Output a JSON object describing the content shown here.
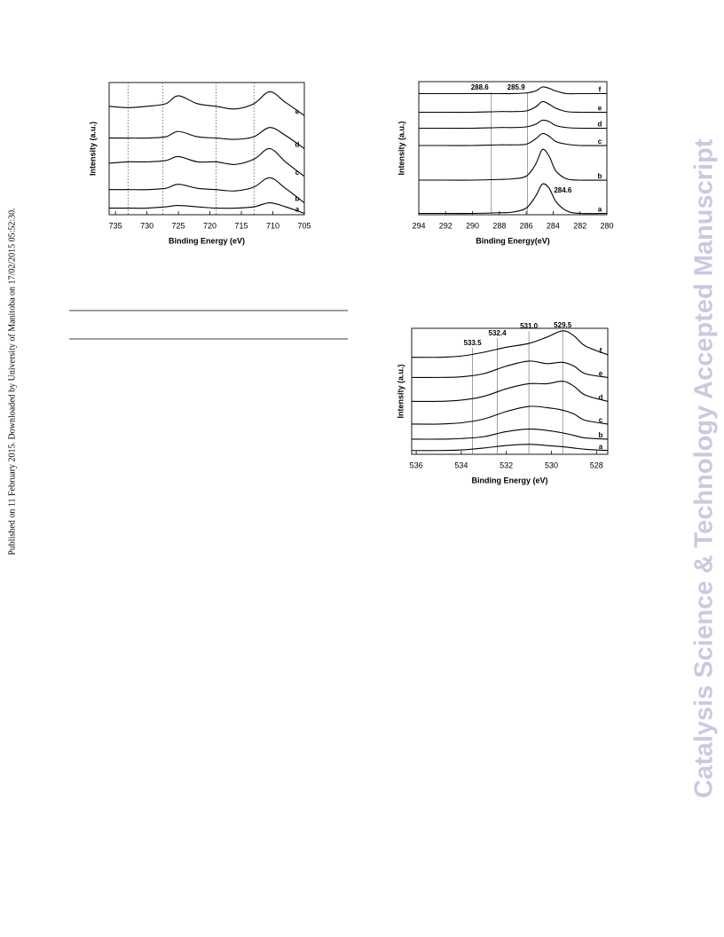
{
  "margin_note": "Published on 11 February 2015. Downloaded by University of Manitoba on 17/02/2015 05:52:30.",
  "watermark": "Catalysis Science & Technology Accepted Manuscript",
  "chart_data": [
    {
      "type": "line",
      "xlabel": "Binding Energy (eV)",
      "ylabel": "Intensity (a.u.)",
      "xlim": [
        736,
        705
      ],
      "ylim": [
        0,
        100
      ],
      "xticks": [
        735,
        730,
        725,
        720,
        715,
        710,
        705
      ],
      "vlines": [
        733,
        727.5,
        719,
        713
      ],
      "vline_style": "dotted",
      "x": [
        736,
        733,
        730,
        727,
        725,
        722,
        719,
        716,
        713,
        710.5,
        708,
        705
      ],
      "series": [
        {
          "name": "e",
          "color": "#000000",
          "values": [
            82,
            81,
            82,
            84,
            90,
            84,
            82,
            80,
            84,
            93,
            85,
            75
          ]
        },
        {
          "name": "d",
          "color": "#000000",
          "values": [
            58,
            58,
            58,
            59,
            63,
            59,
            58,
            57,
            59,
            66,
            60,
            50
          ]
        },
        {
          "name": "c",
          "color": "#000000",
          "values": [
            39,
            40,
            40,
            41,
            44,
            40,
            40,
            38,
            42,
            50,
            40,
            29
          ]
        },
        {
          "name": "b",
          "color": "#000000",
          "values": [
            19,
            19,
            19,
            20,
            23,
            20,
            19,
            18,
            21,
            28,
            20,
            9
          ]
        },
        {
          "name": "a",
          "color": "#000000",
          "values": [
            5,
            5,
            5,
            6,
            7,
            6,
            5,
            5,
            6,
            9,
            6,
            1
          ]
        }
      ]
    },
    {
      "type": "line",
      "xlabel": "Binding Energy(eV)",
      "ylabel": "Intensity (a.u.)",
      "xlim": [
        294,
        280
      ],
      "ylim": [
        0,
        100
      ],
      "xticks": [
        294,
        292,
        290,
        288,
        286,
        284,
        282,
        280
      ],
      "vlines": [
        288.6,
        285.9
      ],
      "vline_style": "solid",
      "peak_labels": [
        284.6
      ],
      "x": [
        294,
        292,
        290,
        288,
        287,
        286,
        285.3,
        284.8,
        284.3,
        283.8,
        283,
        282,
        280
      ],
      "series": [
        {
          "name": "f",
          "color": "#000000",
          "values": [
            91,
            91,
            91,
            91,
            91,
            91.5,
            93,
            96,
            95,
            93,
            91,
            91,
            91
          ]
        },
        {
          "name": "e",
          "color": "#000000",
          "values": [
            77,
            77,
            77,
            77.5,
            77.5,
            78,
            81,
            85,
            83,
            80,
            77.5,
            77,
            77
          ]
        },
        {
          "name": "d",
          "color": "#000000",
          "values": [
            65,
            65,
            65,
            65.5,
            65.5,
            66,
            68,
            71,
            70,
            67,
            65.5,
            65,
            65
          ]
        },
        {
          "name": "c",
          "color": "#000000",
          "values": [
            52,
            52,
            52,
            52.5,
            52.5,
            53,
            57,
            61,
            59,
            55,
            53,
            52,
            52
          ]
        },
        {
          "name": "b",
          "color": "#000000",
          "values": [
            26,
            26,
            26,
            26.5,
            27,
            29,
            38,
            49,
            44,
            33,
            27,
            26,
            26
          ]
        },
        {
          "name": "a",
          "color": "#000000",
          "values": [
            1,
            1,
            1,
            1.5,
            2,
            5,
            14,
            23,
            20,
            10,
            3,
            1,
            1
          ]
        }
      ]
    },
    {
      "type": "line",
      "xlabel": "Binding Energy (eV)",
      "ylabel": "Intensity (a.u.)",
      "xlim": [
        536.2,
        527.5
      ],
      "ylim": [
        0,
        100
      ],
      "xticks": [
        536,
        534,
        532,
        530,
        528
      ],
      "vlines": [
        533.5,
        532.4,
        {
          "value": 531,
          "label": "531.0"
        },
        529.5
      ],
      "vline_style": "solid",
      "x": [
        536.2,
        535,
        534,
        533,
        532,
        531,
        530.2,
        529.5,
        529,
        528.5,
        527.5
      ],
      "series": [
        {
          "name": "f",
          "color": "#000000",
          "values": [
            77,
            77,
            78,
            81,
            85,
            88,
            93,
            98,
            94,
            86,
            79
          ]
        },
        {
          "name": "e",
          "color": "#000000",
          "values": [
            61,
            61,
            61.5,
            64,
            70,
            74,
            72,
            73,
            70,
            64,
            61
          ]
        },
        {
          "name": "d",
          "color": "#000000",
          "values": [
            42,
            42,
            43,
            46,
            52,
            56,
            56,
            58,
            54,
            47,
            42
          ]
        },
        {
          "name": "c",
          "color": "#000000",
          "values": [
            24,
            24,
            25,
            28,
            34,
            38,
            37,
            35,
            32,
            27,
            24
          ]
        },
        {
          "name": "b",
          "color": "#000000",
          "values": [
            12,
            12,
            12.5,
            14,
            18,
            20,
            19,
            17,
            15,
            13,
            12
          ]
        },
        {
          "name": "a",
          "color": "#000000",
          "values": [
            3,
            3,
            3.5,
            5,
            7,
            8,
            7,
            6,
            5,
            4,
            3
          ]
        }
      ]
    }
  ]
}
